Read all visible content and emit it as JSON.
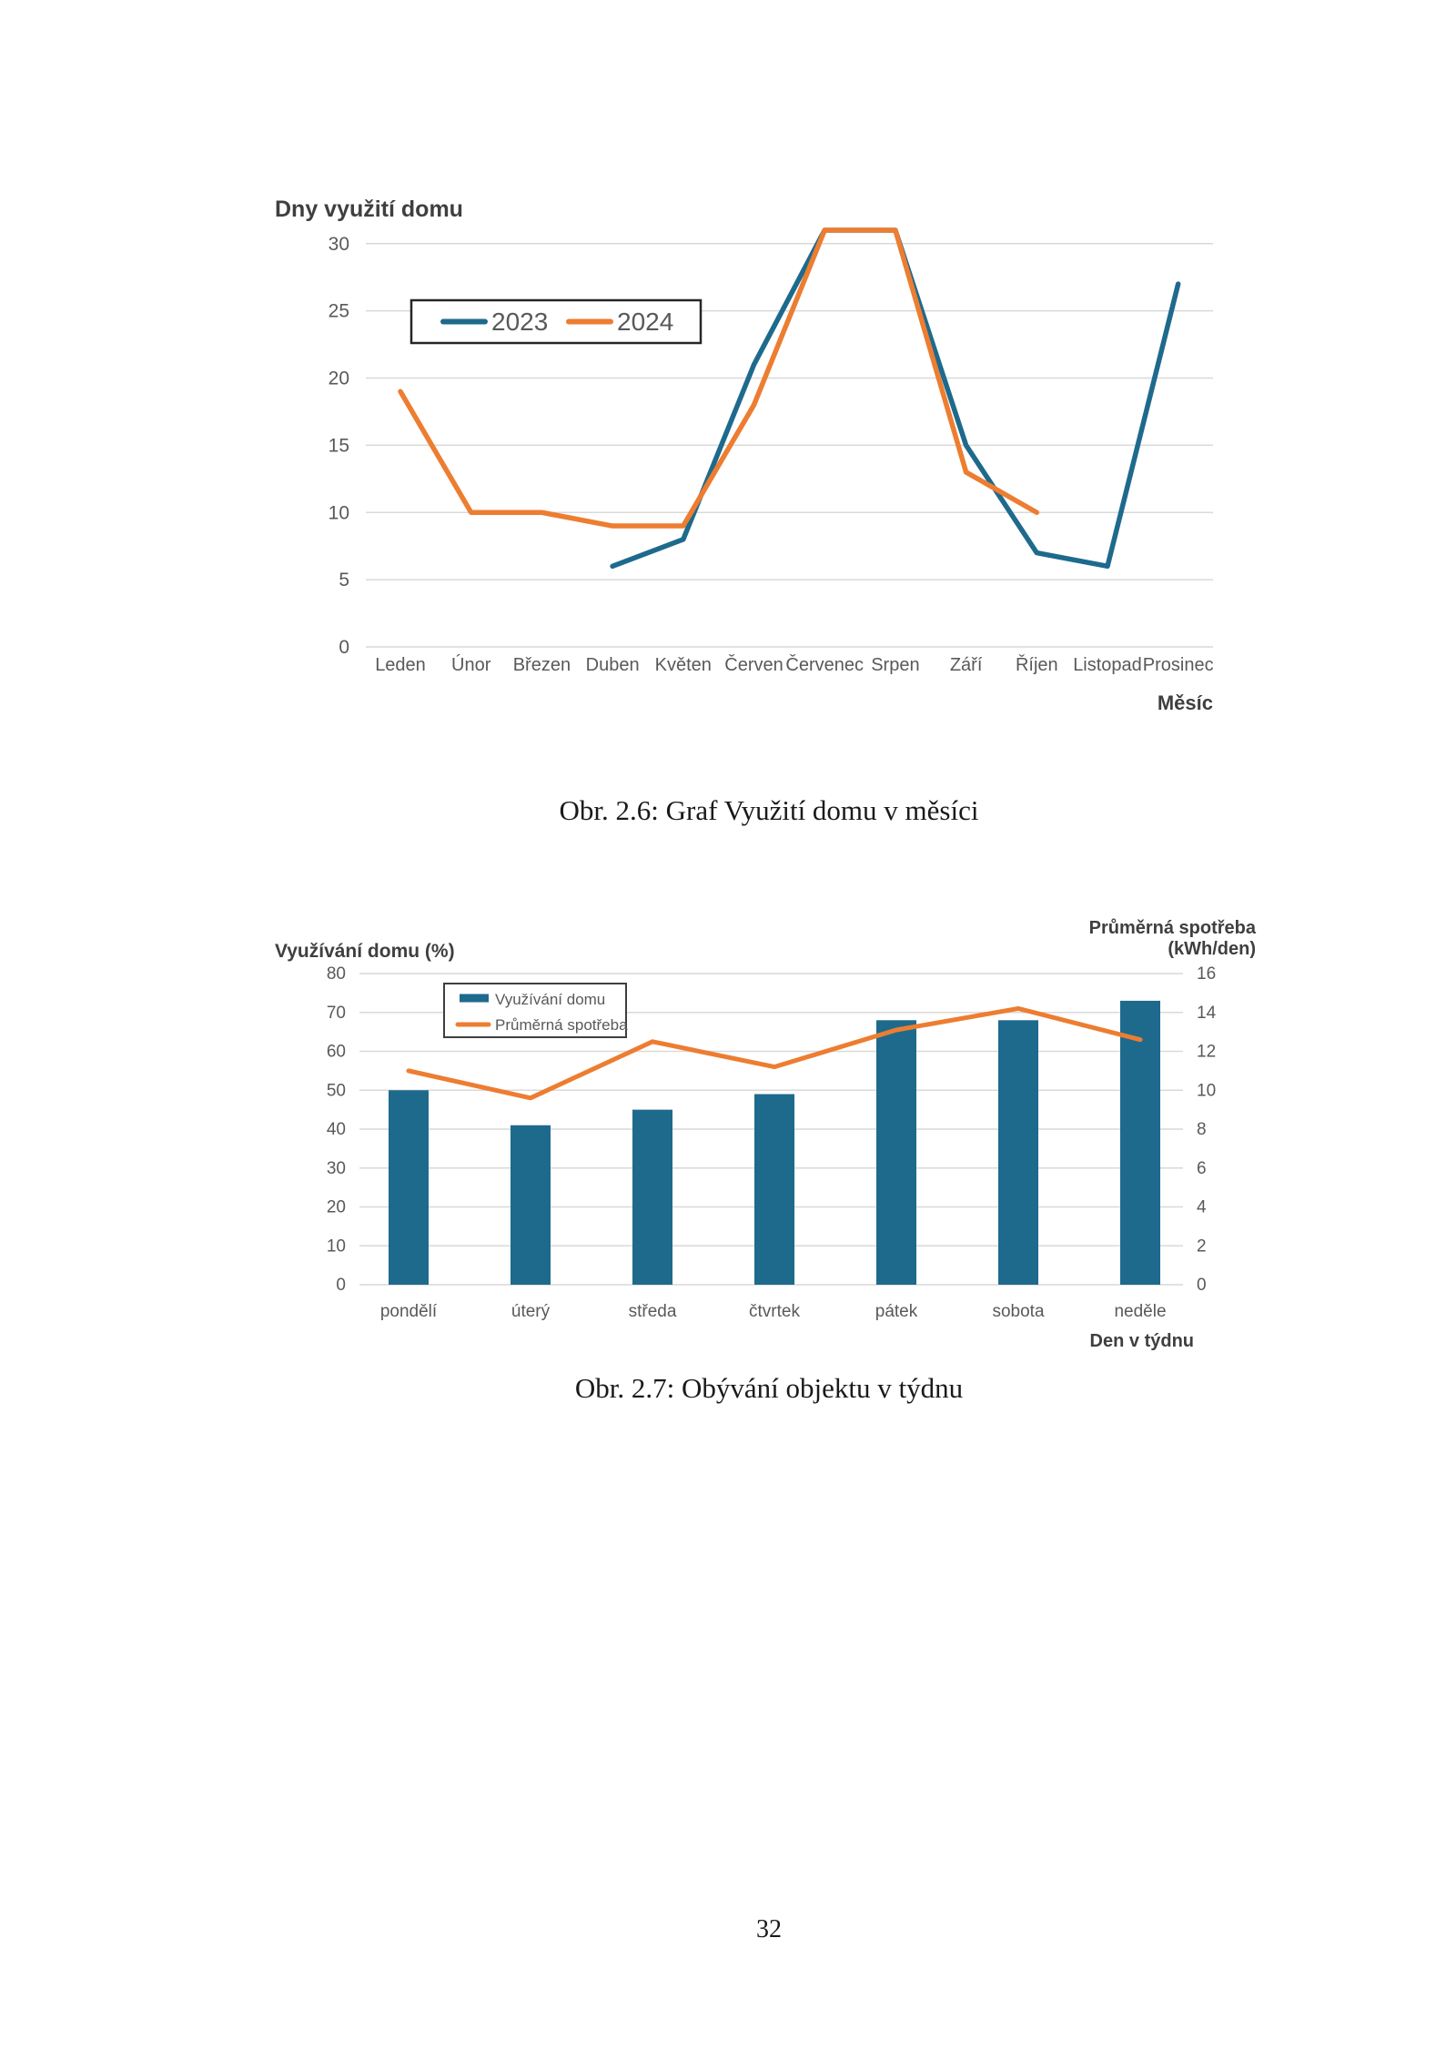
{
  "page": {
    "number": "32"
  },
  "figures": {
    "fig26_caption": "Obr. 2.6: Graf Využití domu v měsíci",
    "fig27_caption": "Obr. 2.7: Obývání objektu v týdnu"
  },
  "colors": {
    "series_blue": "#1E6A8D",
    "series_orange": "#ED7D31",
    "gridline": "#D9D9D9",
    "axis_text": "#595959",
    "title_text": "#3F3F3F",
    "legend_border": "#3F3F3F"
  },
  "chart_data": [
    {
      "type": "line",
      "title": "Dny využití domu",
      "x_axis_title": "Měsíc",
      "categories": [
        "Leden",
        "Únor",
        "Březen",
        "Duben",
        "Květen",
        "Červen",
        "Červenec",
        "Srpen",
        "Září",
        "Říjen",
        "Listopad",
        "Prosinec"
      ],
      "series": [
        {
          "name": "2023",
          "color": "#1E6A8D",
          "values": [
            null,
            null,
            null,
            6,
            8,
            21,
            31,
            31,
            15,
            7,
            6,
            27
          ]
        },
        {
          "name": "2024",
          "color": "#ED7D31",
          "values": [
            19,
            10,
            10,
            9,
            9,
            18,
            31,
            31,
            13,
            10,
            null,
            null
          ]
        }
      ],
      "y_ticks": [
        0,
        5,
        10,
        15,
        20,
        25,
        30
      ],
      "ylim": [
        0,
        31
      ],
      "grid": true,
      "legend_position": "inset-top-left"
    },
    {
      "type": "combo-bar-line",
      "title_left": "Využívání domu (%)",
      "title_right_lines": [
        "Průměrná spotřeba",
        "(kWh/den)"
      ],
      "x_axis_title": "Den v týdnu",
      "categories": [
        "pondělí",
        "úterý",
        "středa",
        "čtvrtek",
        "pátek",
        "sobota",
        "neděle"
      ],
      "bar_series": {
        "name": "Využívání domu",
        "axis": "left",
        "color": "#1E6A8D",
        "values": [
          50,
          41,
          45,
          49,
          68,
          68,
          73
        ]
      },
      "line_series": {
        "name": "Průměrná spotřeba",
        "axis": "right",
        "color": "#ED7D31",
        "values": [
          11,
          9.6,
          12.5,
          11.2,
          13.1,
          14.2,
          12.6
        ]
      },
      "left_ticks": [
        0,
        10,
        20,
        30,
        40,
        50,
        60,
        70,
        80
      ],
      "right_ticks": [
        0,
        2,
        4,
        6,
        8,
        10,
        12,
        14,
        16
      ],
      "left_lim": [
        0,
        80
      ],
      "right_lim": [
        0,
        16
      ],
      "grid": true,
      "legend_position": "inset-top-left"
    }
  ]
}
